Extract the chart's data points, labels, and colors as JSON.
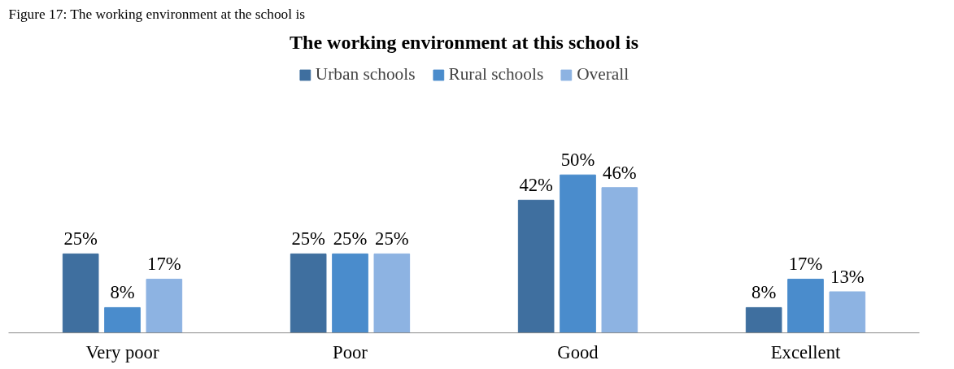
{
  "chart_data": {
    "type": "bar",
    "title": "The working environment at this school is",
    "annotations": [
      "Figure 17: The working environment at the school is"
    ],
    "categories": [
      "Very poor",
      "Poor",
      "Good",
      "Excellent"
    ],
    "series": [
      {
        "name": "Urban schools",
        "color": "#3f6f9f",
        "values": [
          25,
          25,
          42,
          8
        ],
        "value_labels": [
          "25%",
          "25%",
          "42%",
          "8%"
        ]
      },
      {
        "name": "Rural schools",
        "color": "#4a8ccc",
        "values": [
          8,
          25,
          50,
          17
        ],
        "value_labels": [
          "8%",
          "25%",
          "50%",
          "17%"
        ]
      },
      {
        "name": "Overall",
        "color": "#8db3e2",
        "values": [
          17,
          25,
          46,
          13
        ],
        "value_labels": [
          "17%",
          "25%",
          "46%",
          "13%"
        ]
      }
    ],
    "legend": "top"
  }
}
